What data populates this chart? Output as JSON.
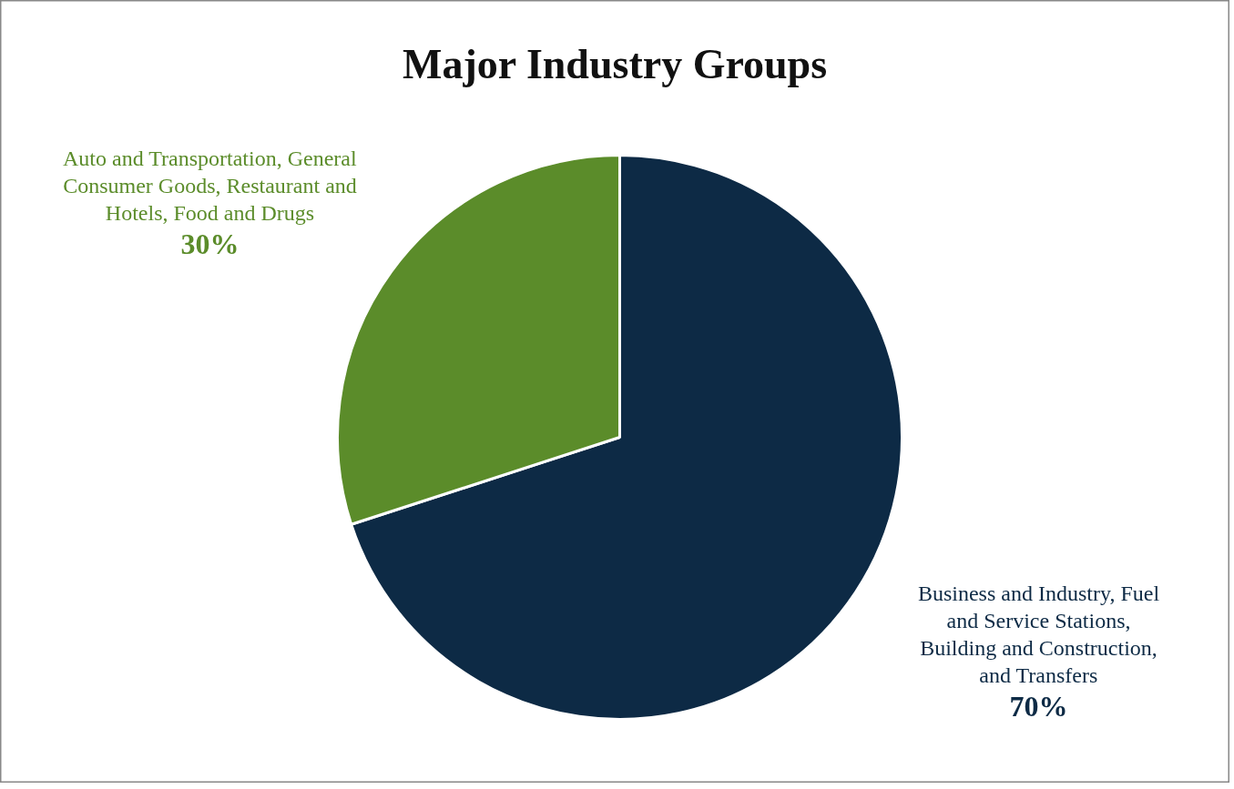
{
  "chart_data": {
    "type": "pie",
    "title": "Major Industry Groups",
    "categories": [
      "Business and Industry, Fuel and Service Stations, Building and Construction, and Transfers",
      "Auto and Transportation, General Consumer Goods, Restaurant and Hotels, Food and Drugs"
    ],
    "values": [
      70,
      30
    ],
    "colors": [
      "#0d2a45",
      "#5b8c2a"
    ],
    "value_labels": [
      "70%",
      "30%"
    ]
  }
}
